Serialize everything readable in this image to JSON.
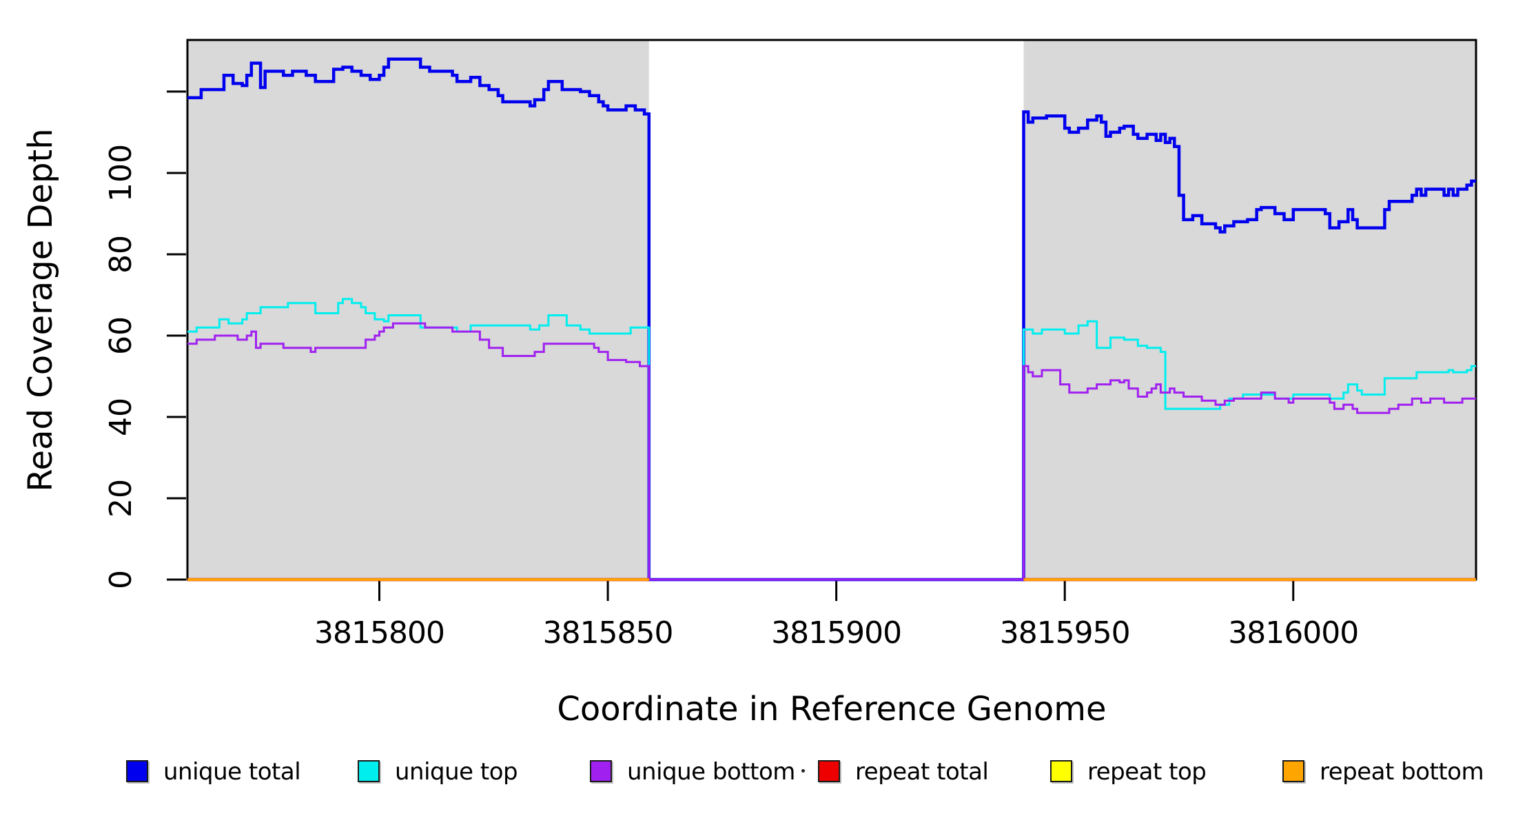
{
  "chart_data": {
    "type": "line",
    "step": true,
    "title": "",
    "xlabel": "Coordinate in Reference Genome",
    "ylabel": "Read Coverage Depth",
    "xlim": [
      3815758,
      3816040
    ],
    "ylim": [
      0,
      132.7
    ],
    "grid": false,
    "legend_position": "bottom",
    "background": "#ffffff",
    "box_color": "#000000",
    "shade_color": "#d9d9d9",
    "shaded_regions": [
      {
        "x0": 3815758,
        "x1": 3815859
      },
      {
        "x0": 3815941,
        "x1": 3816040
      }
    ],
    "x_ticks": {
      "values": [
        3815800,
        3815850,
        3815900,
        3815950,
        3816000
      ],
      "labels": [
        "3815800",
        "3815850",
        "3815900",
        "3815950",
        "3816000"
      ]
    },
    "y_ticks": {
      "values": [
        0,
        20,
        40,
        60,
        80,
        100,
        120
      ],
      "labels": [
        "0",
        "20",
        "40",
        "60",
        "80",
        "100",
        ""
      ]
    },
    "series": [
      {
        "name": "unique total",
        "color": "#0000ee",
        "width": 4.5,
        "points": [
          [
            3815758,
            118.5
          ],
          [
            3815761,
            120.5
          ],
          [
            3815766,
            124
          ],
          [
            3815768,
            122
          ],
          [
            3815770,
            121.5
          ],
          [
            3815771,
            124
          ],
          [
            3815772,
            127
          ],
          [
            3815774,
            121
          ],
          [
            3815775,
            125
          ],
          [
            3815779,
            124
          ],
          [
            3815781,
            125
          ],
          [
            3815784,
            124
          ],
          [
            3815786,
            122.5
          ],
          [
            3815790,
            125.5
          ],
          [
            3815792,
            126
          ],
          [
            3815794,
            125
          ],
          [
            3815796,
            124
          ],
          [
            3815798,
            123
          ],
          [
            3815800,
            124
          ],
          [
            3815801,
            126
          ],
          [
            3815802,
            128
          ],
          [
            3815809,
            126
          ],
          [
            3815811,
            125
          ],
          [
            3815816,
            124
          ],
          [
            3815817,
            122.5
          ],
          [
            3815820,
            123.5
          ],
          [
            3815822,
            121.5
          ],
          [
            3815824,
            120.5
          ],
          [
            3815826,
            119
          ],
          [
            3815827,
            117.5
          ],
          [
            3815833,
            116.5
          ],
          [
            3815834,
            118
          ],
          [
            3815836,
            120.5
          ],
          [
            3815837,
            122.5
          ],
          [
            3815840,
            120.5
          ],
          [
            3815844,
            120
          ],
          [
            3815846,
            119
          ],
          [
            3815848,
            117.5
          ],
          [
            3815849,
            116.5
          ],
          [
            3815850,
            115.5
          ],
          [
            3815854,
            116.5
          ],
          [
            3815856,
            115.5
          ],
          [
            3815858,
            114.5
          ],
          [
            3815859,
            0
          ],
          [
            3815941,
            115
          ],
          [
            3815942,
            112.5
          ],
          [
            3815943,
            113.5
          ],
          [
            3815946,
            114
          ],
          [
            3815950,
            111
          ],
          [
            3815951,
            110
          ],
          [
            3815953,
            111
          ],
          [
            3815955,
            113
          ],
          [
            3815957,
            114
          ],
          [
            3815958,
            112.5
          ],
          [
            3815959,
            109
          ],
          [
            3815960,
            110
          ],
          [
            3815962,
            111
          ],
          [
            3815963,
            111.5
          ],
          [
            3815965,
            109.5
          ],
          [
            3815966,
            108.5
          ],
          [
            3815968,
            109.5
          ],
          [
            3815970,
            108
          ],
          [
            3815971,
            109.5
          ],
          [
            3815972,
            107.5
          ],
          [
            3815973,
            108.5
          ],
          [
            3815974,
            106.5
          ],
          [
            3815975,
            94.5
          ],
          [
            3815976,
            88.5
          ],
          [
            3815978,
            89.5
          ],
          [
            3815980,
            87.5
          ],
          [
            3815983,
            86.5
          ],
          [
            3815984,
            85.5
          ],
          [
            3815985,
            87
          ],
          [
            3815987,
            88
          ],
          [
            3815990,
            88.5
          ],
          [
            3815992,
            91
          ],
          [
            3815993,
            91.5
          ],
          [
            3815996,
            90
          ],
          [
            3815998,
            88.5
          ],
          [
            3816000,
            91
          ],
          [
            3816007,
            90
          ],
          [
            3816008,
            86.5
          ],
          [
            3816010,
            88
          ],
          [
            3816012,
            91
          ],
          [
            3816013,
            88.5
          ],
          [
            3816014,
            86.5
          ],
          [
            3816020,
            91
          ],
          [
            3816021,
            93
          ],
          [
            3816026,
            94.5
          ],
          [
            3816027,
            96
          ],
          [
            3816028,
            94.5
          ],
          [
            3816029,
            96
          ],
          [
            3816033,
            94.5
          ],
          [
            3816034,
            96
          ],
          [
            3816035,
            94.5
          ],
          [
            3816036,
            96
          ],
          [
            3816038,
            97
          ],
          [
            3816039,
            98
          ]
        ],
        "end": 3816040
      },
      {
        "name": "unique top",
        "color": "#00eeee",
        "width": 3,
        "points": [
          [
            3815758,
            61
          ],
          [
            3815760,
            62
          ],
          [
            3815765,
            64
          ],
          [
            3815767,
            63
          ],
          [
            3815770,
            64
          ],
          [
            3815771,
            65.5
          ],
          [
            3815774,
            67
          ],
          [
            3815780,
            68
          ],
          [
            3815786,
            65.5
          ],
          [
            3815791,
            68
          ],
          [
            3815792,
            69
          ],
          [
            3815794,
            68
          ],
          [
            3815796,
            67
          ],
          [
            3815797,
            65.5
          ],
          [
            3815799,
            64
          ],
          [
            3815801,
            63.5
          ],
          [
            3815802,
            65
          ],
          [
            3815809,
            62
          ],
          [
            3815817,
            61
          ],
          [
            3815820,
            62.5
          ],
          [
            3815833,
            61.5
          ],
          [
            3815835,
            62.5
          ],
          [
            3815837,
            65
          ],
          [
            3815841,
            62.5
          ],
          [
            3815844,
            61.5
          ],
          [
            3815846,
            60.5
          ],
          [
            3815855,
            62
          ],
          [
            3815859,
            0
          ],
          [
            3815941,
            61.5
          ],
          [
            3815943,
            60.5
          ],
          [
            3815945,
            61.5
          ],
          [
            3815950,
            60.5
          ],
          [
            3815953,
            62.5
          ],
          [
            3815955,
            63.5
          ],
          [
            3815957,
            57
          ],
          [
            3815960,
            59.5
          ],
          [
            3815963,
            59
          ],
          [
            3815966,
            57.5
          ],
          [
            3815968,
            57
          ],
          [
            3815971,
            56
          ],
          [
            3815972,
            42
          ],
          [
            3815984,
            43
          ],
          [
            3815986,
            44.5
          ],
          [
            3815989,
            45.5
          ],
          [
            3815996,
            44.5
          ],
          [
            3816000,
            45.5
          ],
          [
            3816008,
            44.5
          ],
          [
            3816011,
            46
          ],
          [
            3816012,
            48
          ],
          [
            3816014,
            46.5
          ],
          [
            3816015,
            45.5
          ],
          [
            3816020,
            49.5
          ],
          [
            3816027,
            51
          ],
          [
            3816034,
            51.5
          ],
          [
            3816035,
            51
          ],
          [
            3816038,
            51.5
          ],
          [
            3816039,
            52.5
          ]
        ],
        "end": 3816040
      },
      {
        "name": "unique bottom",
        "color": "#a020f0",
        "width": 3,
        "points": [
          [
            3815758,
            58
          ],
          [
            3815760,
            59
          ],
          [
            3815764,
            60
          ],
          [
            3815769,
            59
          ],
          [
            3815771,
            60
          ],
          [
            3815772,
            61
          ],
          [
            3815773,
            57
          ],
          [
            3815774,
            58
          ],
          [
            3815779,
            57
          ],
          [
            3815785,
            56
          ],
          [
            3815786,
            57
          ],
          [
            3815797,
            59
          ],
          [
            3815799,
            60
          ],
          [
            3815800,
            61
          ],
          [
            3815801,
            62
          ],
          [
            3815803,
            63
          ],
          [
            3815810,
            62
          ],
          [
            3815816,
            61
          ],
          [
            3815822,
            59
          ],
          [
            3815824,
            57
          ],
          [
            3815827,
            55
          ],
          [
            3815834,
            56
          ],
          [
            3815836,
            58
          ],
          [
            3815847,
            57
          ],
          [
            3815848,
            56
          ],
          [
            3815850,
            54
          ],
          [
            3815854,
            53.5
          ],
          [
            3815857,
            52.5
          ],
          [
            3815859,
            0
          ],
          [
            3815941,
            52.5
          ],
          [
            3815942,
            51
          ],
          [
            3815943,
            50
          ],
          [
            3815945,
            51.5
          ],
          [
            3815949,
            48
          ],
          [
            3815951,
            46
          ],
          [
            3815955,
            47
          ],
          [
            3815957,
            48
          ],
          [
            3815960,
            49
          ],
          [
            3815962,
            48.5
          ],
          [
            3815963,
            49
          ],
          [
            3815964,
            47
          ],
          [
            3815966,
            45
          ],
          [
            3815968,
            46
          ],
          [
            3815969,
            47
          ],
          [
            3815970,
            48
          ],
          [
            3815971,
            46
          ],
          [
            3815973,
            47
          ],
          [
            3815974,
            46
          ],
          [
            3815976,
            45
          ],
          [
            3815980,
            44
          ],
          [
            3815983,
            43
          ],
          [
            3815985,
            44
          ],
          [
            3815987,
            44.5
          ],
          [
            3815993,
            46
          ],
          [
            3815996,
            44.5
          ],
          [
            3815999,
            43.5
          ],
          [
            3816000,
            44.5
          ],
          [
            3816008,
            43.5
          ],
          [
            3816009,
            42
          ],
          [
            3816011,
            43
          ],
          [
            3816013,
            42
          ],
          [
            3816014,
            41
          ],
          [
            3816021,
            42
          ],
          [
            3816023,
            43
          ],
          [
            3816026,
            44.5
          ],
          [
            3816028,
            43.5
          ],
          [
            3816030,
            44.5
          ],
          [
            3816033,
            43.5
          ],
          [
            3816037,
            44.5
          ]
        ],
        "end": 3816040
      },
      {
        "name": "repeat total",
        "color": "#ee0000",
        "width": 4.5,
        "segments": [
          {
            "x0": 3815758,
            "x1": 3815859,
            "y": 0
          },
          {
            "x0": 3815941,
            "x1": 3816040,
            "y": 0
          }
        ]
      },
      {
        "name": "repeat top",
        "color": "#ffff00",
        "width": 3.5,
        "segments": [
          {
            "x0": 3815758,
            "x1": 3815859,
            "y": 0
          },
          {
            "x0": 3815941,
            "x1": 3816040,
            "y": 0
          }
        ]
      },
      {
        "name": "repeat bottom",
        "color": "#ffa500",
        "width": 3,
        "segments": [
          {
            "x0": 3815758,
            "x1": 3815859,
            "y": 0
          },
          {
            "x0": 3815941,
            "x1": 3816040,
            "y": 0
          }
        ]
      }
    ]
  },
  "legend": {
    "items": [
      {
        "label": "unique total",
        "color": "#0000ee"
      },
      {
        "label": "unique top",
        "color": "#00eeee"
      },
      {
        "label": "unique bottom",
        "color": "#a020f0"
      },
      {
        "label": "repeat total",
        "color": "#ee0000"
      },
      {
        "label": "repeat top",
        "color": "#ffff00"
      },
      {
        "label": "repeat bottom",
        "color": "#ffa500"
      }
    ]
  }
}
